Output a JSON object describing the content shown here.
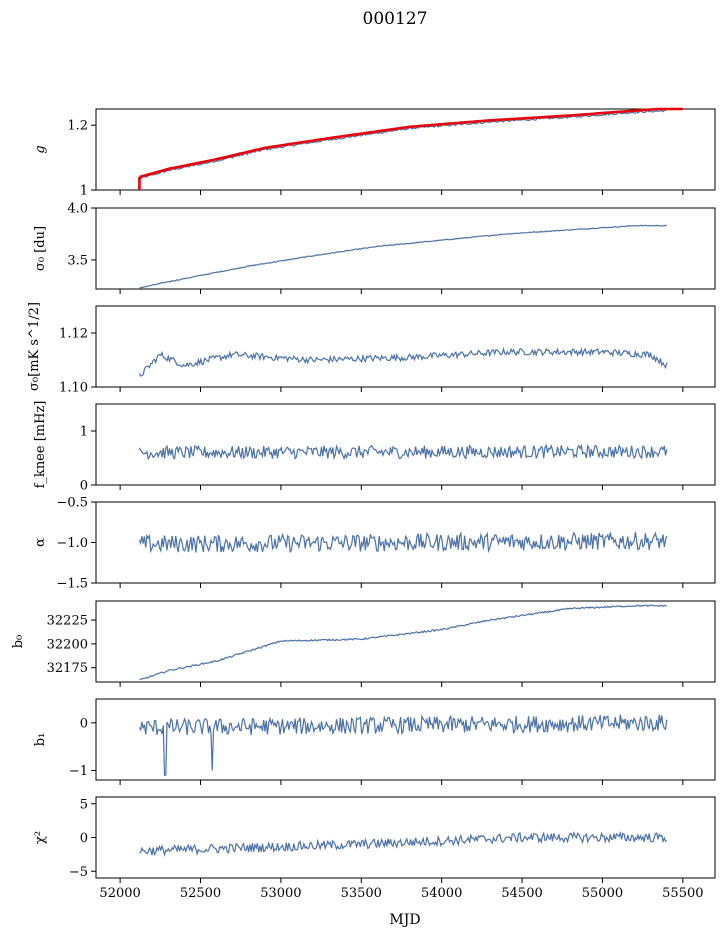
{
  "chart_data": {
    "type": "line",
    "title": "000127",
    "xlabel": "MJD",
    "xlim": [
      51850,
      55700
    ],
    "xticks": [
      52000,
      52500,
      53000,
      53500,
      54000,
      54500,
      55000,
      55500
    ],
    "x_start": 52120,
    "x_end": 55400,
    "grid": false,
    "legend": "none",
    "line_color": "#4c72a8",
    "fit_color": "#e8000b",
    "panels": [
      {
        "id": "g",
        "ylabel": "g",
        "ylim": [
          1.0,
          1.25
        ],
        "yticks": [
          1.0,
          1.2
        ],
        "trend": [
          [
            52120,
            1.035
          ],
          [
            52300,
            1.06
          ],
          [
            52600,
            1.09
          ],
          [
            52900,
            1.125
          ],
          [
            53300,
            1.155
          ],
          [
            53800,
            1.19
          ],
          [
            54300,
            1.21
          ],
          [
            54800,
            1.225
          ],
          [
            55200,
            1.24
          ],
          [
            55400,
            1.245
          ]
        ],
        "noise": 0.003,
        "fit": [
          [
            52120,
            1.04
          ],
          [
            52300,
            1.065
          ],
          [
            52600,
            1.095
          ],
          [
            52900,
            1.13
          ],
          [
            53300,
            1.16
          ],
          [
            53800,
            1.195
          ],
          [
            54300,
            1.215
          ],
          [
            54800,
            1.23
          ],
          [
            55200,
            1.245
          ],
          [
            55500,
            1.255
          ]
        ],
        "fit_drop": [
          52120,
          1.0,
          1.04
        ]
      },
      {
        "id": "sigma0-du",
        "ylabel": "σ₀ [du]",
        "ylim": [
          3.22,
          4.0
        ],
        "yticks": [
          3.5,
          4.0
        ],
        "tick_labels": [
          "3.5",
          "4.0"
        ],
        "trend": [
          [
            52120,
            3.23
          ],
          [
            52300,
            3.29
          ],
          [
            52500,
            3.35
          ],
          [
            52800,
            3.44
          ],
          [
            53200,
            3.54
          ],
          [
            53600,
            3.63
          ],
          [
            54000,
            3.69
          ],
          [
            54400,
            3.75
          ],
          [
            54800,
            3.79
          ],
          [
            55200,
            3.83
          ],
          [
            55400,
            3.83
          ]
        ],
        "noise": 0.004
      },
      {
        "id": "sigma0-mk",
        "ylabel": "σ₀[mK s^1/2]",
        "ylim": [
          1.1,
          1.13
        ],
        "yticks": [
          1.1,
          1.12
        ],
        "tick_labels": [
          "1.10",
          "1.12"
        ],
        "trend": [
          [
            52120,
            1.104
          ],
          [
            52250,
            1.112
          ],
          [
            52400,
            1.108
          ],
          [
            52700,
            1.112
          ],
          [
            53200,
            1.11
          ],
          [
            53800,
            1.111
          ],
          [
            54400,
            1.113
          ],
          [
            55000,
            1.113
          ],
          [
            55300,
            1.112
          ],
          [
            55400,
            1.108
          ]
        ],
        "noise": 0.0012
      },
      {
        "id": "fknee",
        "ylabel": "f_knee [mHz]",
        "ylim": [
          0,
          1.5
        ],
        "yticks": [
          0,
          1
        ],
        "trend": [
          [
            52120,
            0.6
          ],
          [
            55400,
            0.62
          ]
        ],
        "noise": 0.12
      },
      {
        "id": "alpha",
        "ylabel": "α",
        "ylim": [
          -1.5,
          -0.5
        ],
        "yticks": [
          -1.5,
          -1.0,
          -0.5
        ],
        "tick_labels": [
          "−1.5",
          "−1.0",
          "−0.5"
        ],
        "trend": [
          [
            52120,
            -1.02
          ],
          [
            55400,
            -0.98
          ]
        ],
        "noise": 0.11
      },
      {
        "id": "b0",
        "ylabel": "b₀",
        "ylim": [
          32160,
          32245
        ],
        "yticks": [
          32175,
          32200,
          32225
        ],
        "trend": [
          [
            52120,
            32162
          ],
          [
            52300,
            32172
          ],
          [
            52600,
            32182
          ],
          [
            53000,
            32203
          ],
          [
            53500,
            32205
          ],
          [
            54000,
            32215
          ],
          [
            54300,
            32225
          ],
          [
            54800,
            32237
          ],
          [
            55200,
            32240
          ],
          [
            55400,
            32240
          ]
        ],
        "noise": 0.8
      },
      {
        "id": "b1",
        "ylabel": "b₁",
        "ylim": [
          -1.2,
          0.5
        ],
        "yticks": [
          -1,
          0
        ],
        "tick_labels": [
          "−1",
          "0"
        ],
        "trend": [
          [
            52120,
            -0.1
          ],
          [
            55400,
            0.0
          ]
        ],
        "noise": 0.18,
        "spikes": [
          [
            52280,
            -1.1
          ],
          [
            52570,
            -1.0
          ]
        ]
      },
      {
        "id": "chi2",
        "ylabel": "χ²",
        "ylim": [
          -6,
          6
        ],
        "yticks": [
          -5,
          0,
          5
        ],
        "tick_labels": [
          "−5",
          "0",
          "5"
        ],
        "trend": [
          [
            52120,
            -2.0
          ],
          [
            53500,
            -1.0
          ],
          [
            54500,
            0.0
          ],
          [
            55400,
            0.0
          ]
        ],
        "noise": 0.7
      }
    ]
  }
}
